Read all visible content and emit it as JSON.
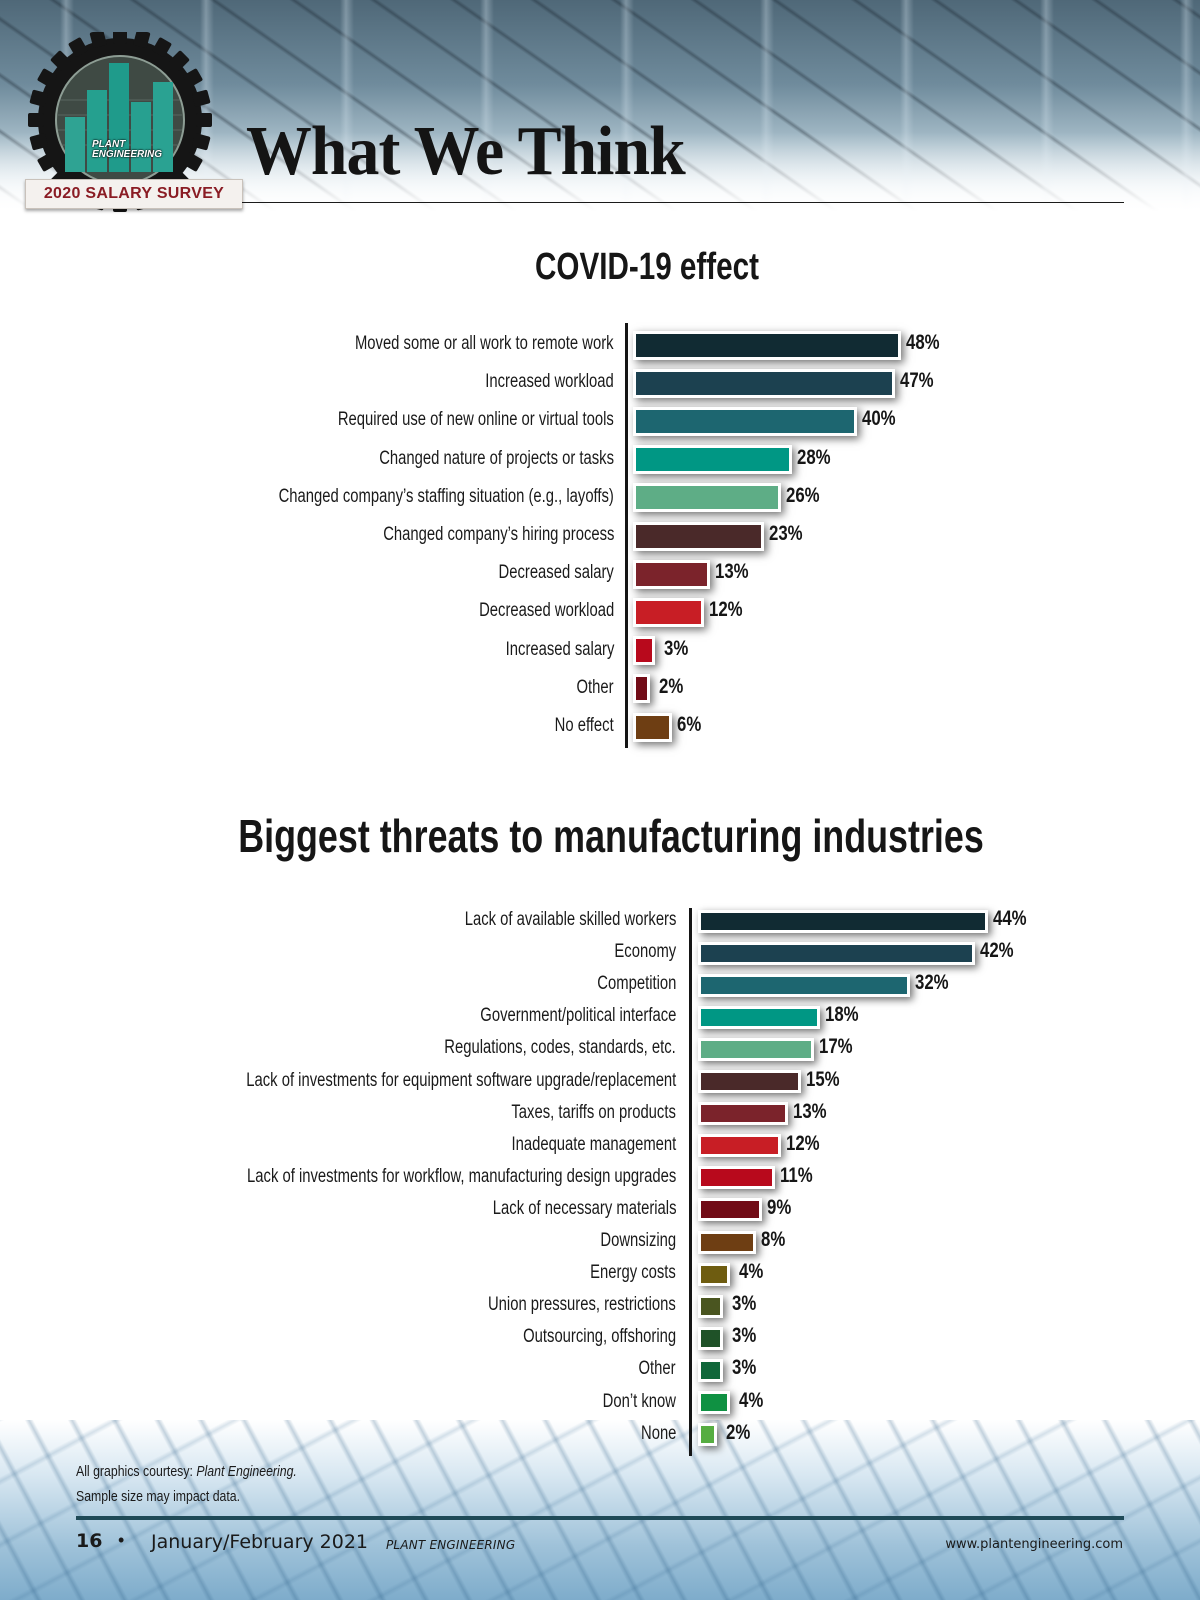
{
  "badge": {
    "brand": "PLANT ENGINEERING",
    "banner": "2020 SALARY SURVEY"
  },
  "page": {
    "title": "What We Think"
  },
  "chart_data": [
    {
      "type": "bar",
      "orientation": "horizontal",
      "title": "COVID-19 effect",
      "xlabel": "",
      "ylabel": "",
      "unit": "%",
      "xlim": [
        0,
        50
      ],
      "grid": false,
      "legend": "none",
      "categories": [
        "Moved some or all work to remote work",
        "Increased workload",
        "Required use of new online or virtual tools",
        "Changed nature of projects or tasks",
        "Changed company’s staffing situation (e.g., layoffs)",
        "Changed company’s hiring process",
        "Decreased salary",
        "Decreased workload",
        "Increased salary",
        "Other",
        "No effect"
      ],
      "values": [
        48,
        47,
        40,
        28,
        26,
        23,
        13,
        12,
        3,
        2,
        6
      ],
      "value_labels": [
        "48%",
        "47%",
        "40%",
        "28%",
        "26%",
        "23%",
        "13%",
        "12%",
        "3%",
        "2%",
        "6%"
      ],
      "colors": [
        "#112b33",
        "#1c4150",
        "#1d6670",
        "#009784",
        "#5ead86",
        "#4a2929",
        "#7b232b",
        "#c81e25",
        "#b8091c",
        "#710b16",
        "#6e3e13"
      ]
    },
    {
      "type": "bar",
      "orientation": "horizontal",
      "title": "Biggest threats to manufacturing industries",
      "xlabel": "",
      "ylabel": "",
      "unit": "%",
      "xlim": [
        0,
        50
      ],
      "grid": false,
      "legend": "none",
      "categories": [
        "Lack of available skilled workers",
        "Economy",
        "Competition",
        "Government/political interface",
        "Regulations, codes, standards, etc.",
        "Lack of investments for equipment software upgrade/replacement",
        "Taxes, tariffs on products",
        "Inadequate management",
        "Lack of investments for workflow, manufacturing design upgrades",
        "Lack of necessary materials",
        "Downsizing",
        "Energy costs",
        "Union pressures, restrictions",
        "Outsourcing, offshoring",
        "Other",
        "Don’t know",
        "None"
      ],
      "values": [
        44,
        42,
        32,
        18,
        17,
        15,
        13,
        12,
        11,
        9,
        8,
        4,
        3,
        3,
        3,
        4,
        2
      ],
      "value_labels": [
        "44%",
        "42%",
        "32%",
        "18%",
        "17%",
        "15%",
        "13%",
        "12%",
        "11%",
        "9%",
        "8%",
        "4%",
        "3%",
        "3%",
        "3%",
        "4%",
        "2%"
      ],
      "colors": [
        "#112b33",
        "#1c4150",
        "#1d6670",
        "#009784",
        "#5ead86",
        "#4a2929",
        "#7b232b",
        "#c81e25",
        "#b8091c",
        "#710b16",
        "#6e3e13",
        "#6e5c10",
        "#4a5520",
        "#1f5228",
        "#10673a",
        "#0f9142",
        "#56ad41"
      ]
    }
  ],
  "notes": {
    "credit_prefix": "All graphics courtesy: ",
    "credit_source": "Plant Engineering.",
    "sample_note": "Sample size may impact data."
  },
  "footer": {
    "page_number": "16",
    "bullet": "•",
    "issue_date": "January/February 2021",
    "magazine": "PLANT ENGINEERING",
    "website": "www.plantengineering.com"
  }
}
